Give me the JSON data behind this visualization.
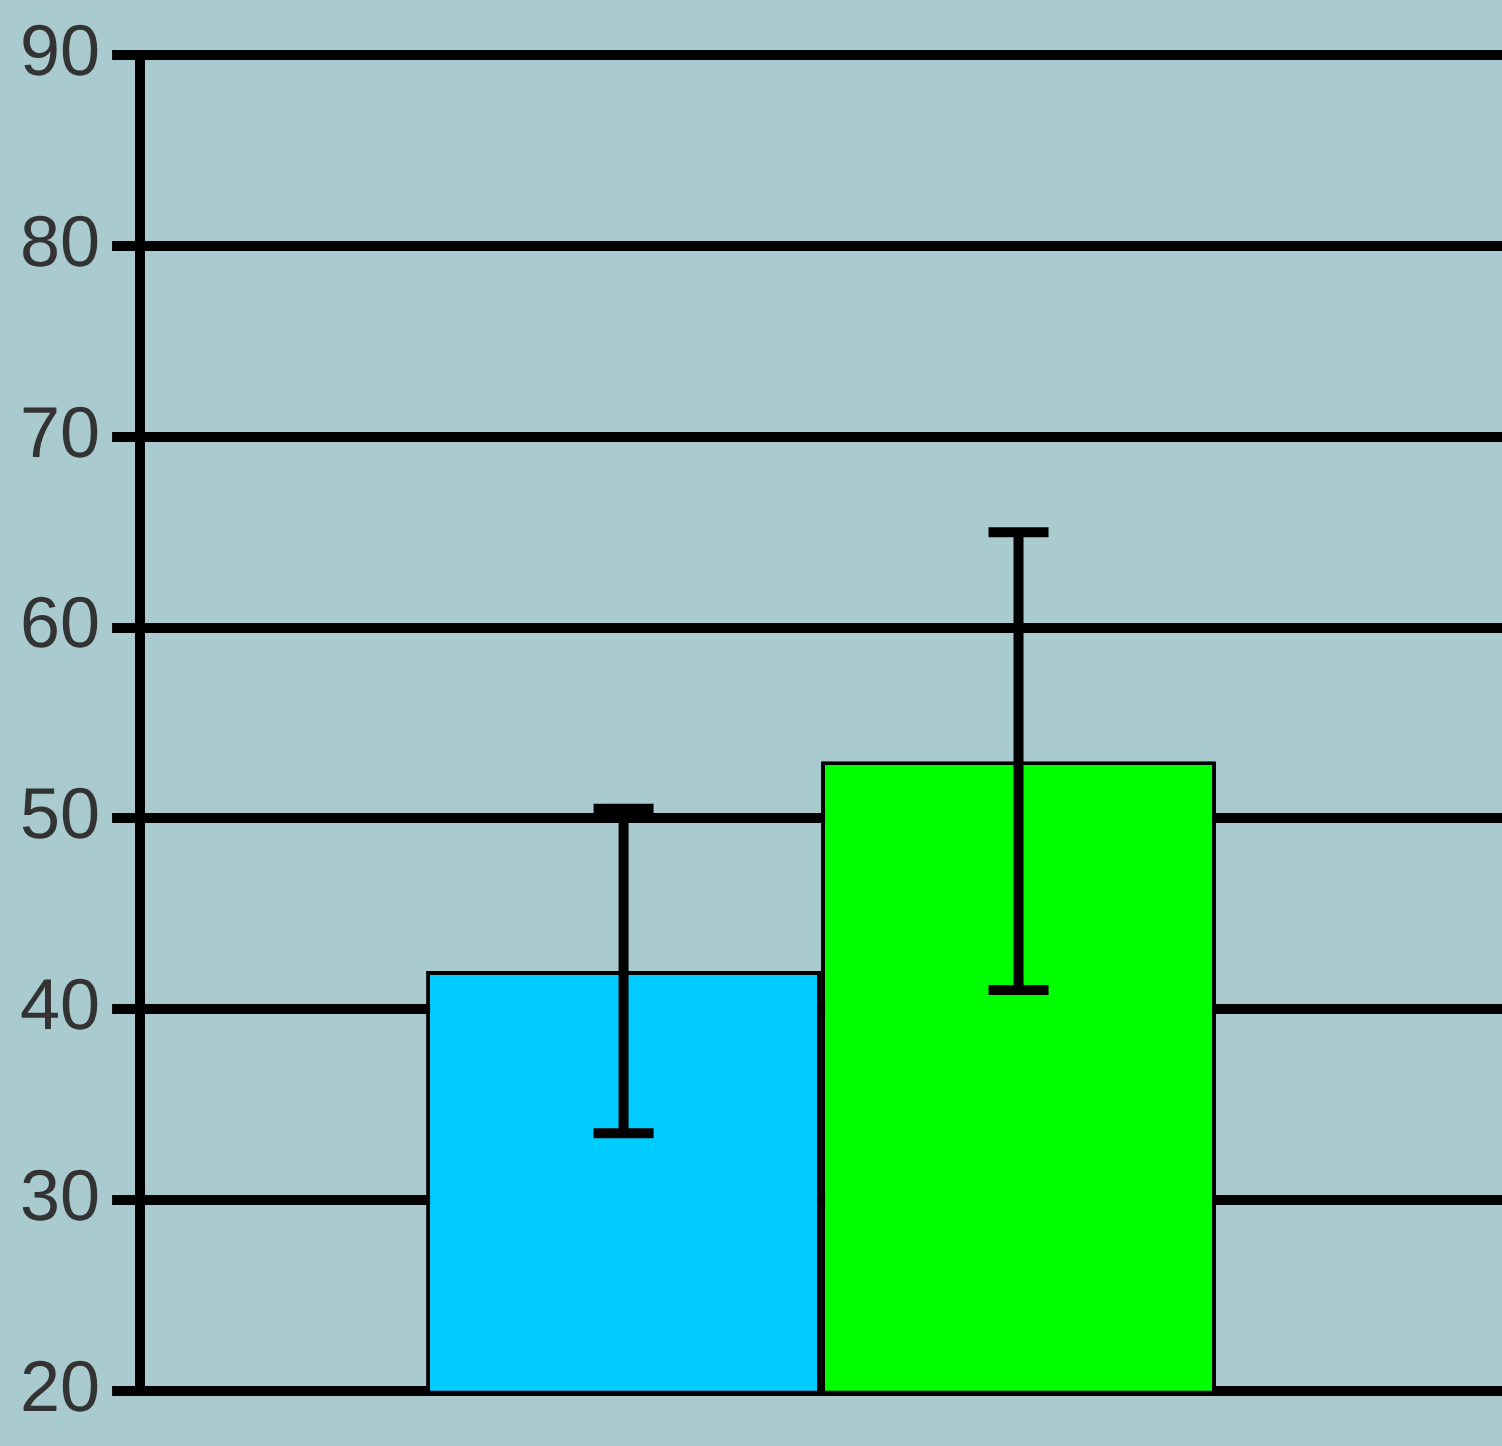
{
  "chart_data": {
    "type": "bar",
    "categories": [
      null
    ],
    "series": [
      {
        "color": "#00ccff",
        "values": [
          42
        ],
        "errors": [
          8.5
        ]
      },
      {
        "color": "#00ff00",
        "values": [
          53
        ],
        "errors": [
          12
        ]
      }
    ],
    "ylim": [
      20,
      90
    ],
    "yticks": [
      20,
      30,
      40,
      50,
      60,
      70,
      80,
      90
    ],
    "grid": "y",
    "legend": false
  }
}
